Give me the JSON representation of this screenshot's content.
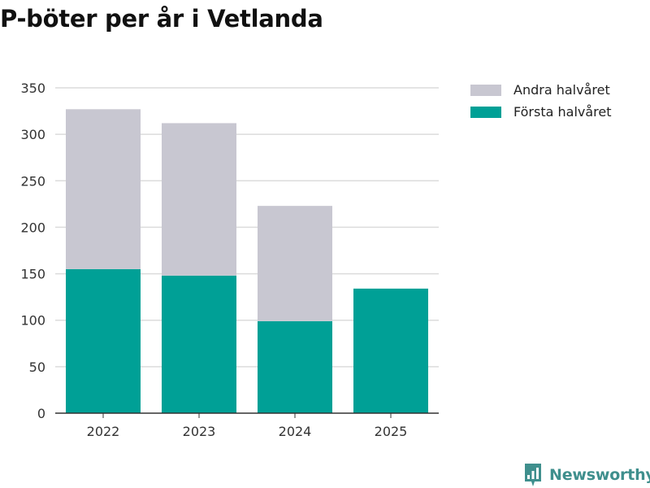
{
  "chart_data": {
    "type": "bar",
    "stacked": true,
    "title": "P-böter per år i Vetlanda",
    "categories": [
      "2022",
      "2023",
      "2024",
      "2025"
    ],
    "series": [
      {
        "name": "Första halvåret",
        "color": "#00a096",
        "values": [
          155,
          148,
          99,
          134
        ]
      },
      {
        "name": "Andra halvåret",
        "color": "#c8c7d1",
        "values": [
          172,
          164,
          124,
          0
        ]
      }
    ],
    "legend_order": [
      "Andra halvåret",
      "Första halvåret"
    ],
    "yticks": [
      0,
      50,
      100,
      150,
      200,
      250,
      300,
      350
    ],
    "ylim": [
      0,
      350
    ],
    "xlabel": "",
    "ylabel": "",
    "grid": true,
    "legend_position": "right"
  },
  "branding": {
    "name": "Newsworthy",
    "color": "#3f8f8d"
  }
}
